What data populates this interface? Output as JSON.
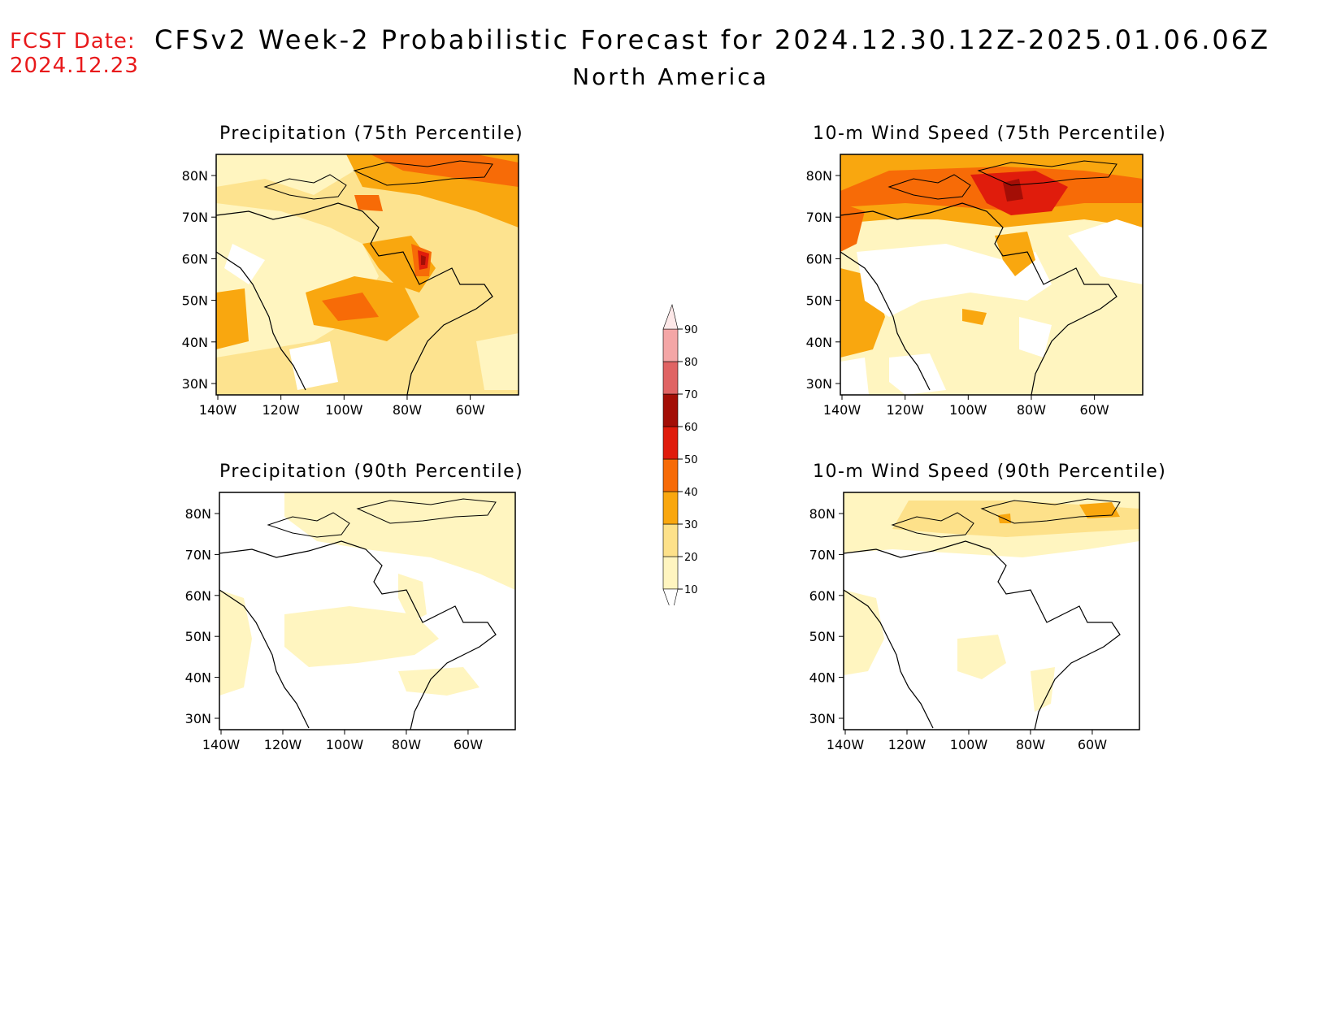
{
  "header": {
    "fcst_label": "FCST Date:",
    "fcst_date": "2024.12.23",
    "title": "CFSv2 Week-2 Probabilistic Forecast for 2024.12.30.12Z-2025.01.06.06Z",
    "subtitle": "North America"
  },
  "colorbar": {
    "levels": [
      "10",
      "20",
      "30",
      "40",
      "50",
      "60",
      "70",
      "80",
      "90"
    ],
    "colors": [
      "#ffffff",
      "#fff5c0",
      "#fde18a",
      "#f9a70f",
      "#f76b07",
      "#e01c0c",
      "#a30e06",
      "#e06464",
      "#f4a6a6",
      "#fde8e8"
    ]
  },
  "panels": [
    {
      "title": "Precipitation (75th Percentile)"
    },
    {
      "title": "10-m Wind Speed (75th Percentile)"
    },
    {
      "title": "Precipitation (90th Percentile)"
    },
    {
      "title": "10-m Wind Speed (90th Percentile)"
    }
  ],
  "axes": {
    "lat_labels": [
      "80N",
      "70N",
      "60N",
      "50N",
      "40N",
      "30N"
    ],
    "lon_labels": [
      "140W",
      "120W",
      "100W",
      "80W",
      "60W"
    ]
  }
}
